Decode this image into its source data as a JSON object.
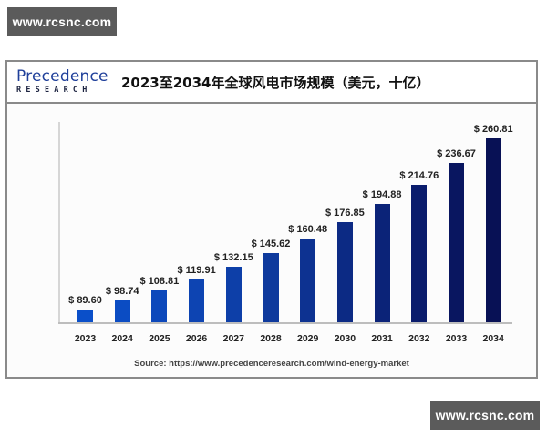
{
  "watermarks": {
    "top": "www.rcsnc.com",
    "bottom": "www.rcsnc.com"
  },
  "logo": {
    "main": "Precedence",
    "sub": "RESEARCH",
    "color": "#1f3f9a"
  },
  "chart_data": {
    "type": "bar",
    "title": "2023至2034年全球风电市场规模（美元，十亿）",
    "xlabel": "",
    "ylabel": "",
    "categories": [
      "2023",
      "2024",
      "2025",
      "2026",
      "2027",
      "2028",
      "2029",
      "2030",
      "2031",
      "2032",
      "2033",
      "2034"
    ],
    "values": [
      89.6,
      98.74,
      108.81,
      119.91,
      132.15,
      145.62,
      160.48,
      176.85,
      194.88,
      214.76,
      236.67,
      260.81
    ],
    "value_labels": [
      "$ 89.60",
      "$ 98.74",
      "$ 108.81",
      "$ 119.91",
      "$ 132.15",
      "$ 145.62",
      "$ 160.48",
      "$ 176.85",
      "$ 194.88",
      "$ 214.76",
      "$ 236.67",
      "$ 260.81"
    ],
    "bar_colors": [
      "#0a4fc9",
      "#0b4cc3",
      "#0c48bb",
      "#0d44b2",
      "#0d3fa8",
      "#0e3a9d",
      "#0d3291",
      "#0c2a84",
      "#0b2378",
      "#0a1c6c",
      "#091660",
      "#081155"
    ],
    "grid": false,
    "legend": null,
    "unit": "USD billion",
    "source": "Source: https://www.precedenceresearch.com/wind-energy-market"
  }
}
